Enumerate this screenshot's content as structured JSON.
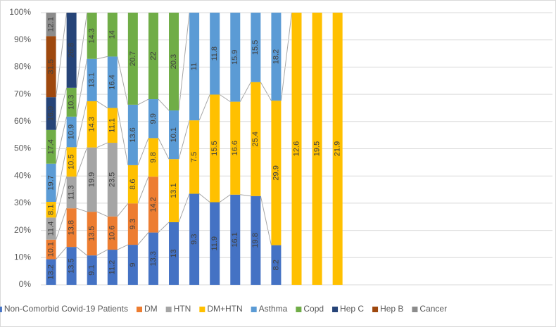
{
  "chart_data": {
    "type": "stacked_bar_100",
    "categories": [
      null,
      null,
      null,
      null,
      null,
      null,
      null,
      null,
      null,
      null,
      null,
      null,
      null,
      null,
      null,
      null,
      null,
      null,
      null,
      null,
      null,
      null,
      null,
      null,
      null
    ],
    "series": [
      {
        "name": "Non-Comorbid Covid-19 Patients",
        "color": "#4472c4",
        "values": [
          13.2,
          13.5,
          9.1,
          11.2,
          9,
          13.3,
          13,
          9.3,
          11.9,
          16.1,
          19.8,
          8.2,
          null,
          null,
          null,
          null,
          null,
          null,
          null,
          null,
          null,
          null,
          null,
          null,
          null
        ]
      },
      {
        "name": "DM",
        "color": "#ed7d31",
        "values": [
          10.1,
          13.8,
          13.5,
          10.6,
          9.3,
          14.2,
          null,
          null,
          null,
          null,
          null,
          null,
          null,
          null,
          null,
          null,
          null,
          null,
          null,
          null,
          null,
          null,
          null,
          null,
          null
        ]
      },
      {
        "name": "HTN",
        "color": "#a5a5a5",
        "values": [
          11.4,
          11.3,
          19.9,
          23.5,
          null,
          null,
          null,
          null,
          null,
          null,
          null,
          null,
          null,
          null,
          null,
          null,
          null,
          null,
          null,
          null,
          null,
          null,
          null,
          null,
          null
        ]
      },
      {
        "name": "DM+HTN",
        "color": "#ffc000",
        "values": [
          8.1,
          10.5,
          14.3,
          11.1,
          8.6,
          9.8,
          13.1,
          7.5,
          15.5,
          16.6,
          25.4,
          29.9,
          12.6,
          19.5,
          21.9,
          null,
          null,
          null,
          null,
          null,
          null,
          null,
          null,
          null,
          null
        ]
      },
      {
        "name": "Asthma",
        "color": "#5b9bd5",
        "values": [
          19.7,
          10.9,
          13.1,
          16.4,
          13.6,
          9.9,
          10.1,
          11,
          11.8,
          15.9,
          15.5,
          18.2,
          null,
          null,
          null,
          null,
          null,
          null,
          null,
          null,
          null,
          null,
          null,
          null,
          null
        ]
      },
      {
        "name": "Copd",
        "color": "#70ad47",
        "values": [
          17.4,
          10.3,
          14.3,
          14,
          20.7,
          22,
          20.3,
          null,
          null,
          null,
          null,
          null,
          null,
          null,
          null,
          null,
          null,
          null,
          null,
          null,
          null,
          null,
          null,
          null,
          null
        ]
      },
      {
        "name": "Hep C",
        "color": "#264478",
        "values": [
          16.9,
          26.8,
          null,
          null,
          null,
          null,
          null,
          null,
          null,
          null,
          null,
          null,
          null,
          null,
          null,
          null,
          null,
          null,
          null,
          null,
          null,
          null,
          null,
          null,
          null
        ]
      },
      {
        "name": "Hep B",
        "color": "#9e480e",
        "values": [
          31.5,
          null,
          null,
          null,
          null,
          null,
          null,
          null,
          null,
          null,
          null,
          null,
          null,
          null,
          null,
          null,
          null,
          null,
          null,
          null,
          null,
          null,
          null,
          null,
          null
        ]
      },
      {
        "name": "Cancer",
        "color": "#8c8c8c",
        "values": [
          12.1,
          null,
          null,
          null,
          null,
          null,
          null,
          null,
          null,
          null,
          null,
          null,
          null,
          null,
          null,
          null,
          null,
          null,
          null,
          null,
          null,
          null,
          null,
          null,
          null
        ]
      }
    ],
    "ylim": [
      0,
      100
    ],
    "yticks": [
      {
        "value": 0,
        "label": "0%"
      },
      {
        "value": 10,
        "label": "10%"
      },
      {
        "value": 20,
        "label": "20%"
      },
      {
        "value": 30,
        "label": "30%"
      },
      {
        "value": 40,
        "label": "40%"
      },
      {
        "value": 50,
        "label": "50%"
      },
      {
        "value": 60,
        "label": "60%"
      },
      {
        "value": 70,
        "label": "70%"
      },
      {
        "value": 80,
        "label": "80%"
      },
      {
        "value": 90,
        "label": "90%"
      },
      {
        "value": 100,
        "label": "100%"
      }
    ],
    "grid": true,
    "legend": "bottom"
  }
}
